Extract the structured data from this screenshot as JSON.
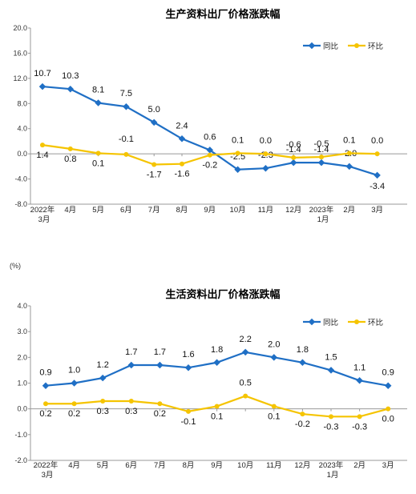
{
  "chart_data": [
    {
      "type": "line",
      "title": "生产资料出厂价格涨跌幅",
      "unit": "",
      "categories": [
        "2022年|3月",
        "4月",
        "5月",
        "6月",
        "7月",
        "8月",
        "9月",
        "10月",
        "11月",
        "12月",
        "2023年|1月",
        "2月",
        "3月"
      ],
      "series": [
        {
          "name": "同比",
          "color": "#1f6fc5",
          "values": [
            10.7,
            10.3,
            8.1,
            7.5,
            5.0,
            2.4,
            0.6,
            -2.5,
            -2.3,
            -1.4,
            -1.4,
            -2.0,
            -3.4
          ],
          "labels": [
            "10.7",
            "10.3",
            "8.1",
            "7.5",
            "5.0",
            "2.4",
            "0.6",
            "-2.5",
            "-2.3",
            "-1.4",
            "-1.4",
            "-2.0",
            "-3.4"
          ]
        },
        {
          "name": "环比",
          "color": "#f5c400",
          "values": [
            1.4,
            0.8,
            0.1,
            -0.1,
            -1.7,
            -1.6,
            -0.2,
            0.1,
            0.0,
            -0.6,
            -0.5,
            0.1,
            0.0
          ],
          "labels": [
            "1.4",
            "0.8",
            "0.1",
            "-0.1",
            "-1.7",
            "-1.6",
            "-0.2",
            "0.1",
            "0.0",
            "-0.6",
            "-0.5",
            "0.1",
            "0.0"
          ]
        }
      ],
      "yticks": [
        "20.0",
        "16.0",
        "12.0",
        "8.0",
        "4.0",
        "0.0",
        "-4.0",
        "-8.0"
      ],
      "ylim": [
        -8,
        20
      ],
      "legend": "top-right",
      "grid": false
    },
    {
      "type": "line",
      "title": "生活资料出厂价格涨跌幅",
      "unit": "(%)",
      "categories": [
        "2022年|3月",
        "4月",
        "5月",
        "6月",
        "7月",
        "8月",
        "9月",
        "10月",
        "11月",
        "12月",
        "2023年|1月",
        "2月",
        "3月"
      ],
      "series": [
        {
          "name": "同比",
          "color": "#1f6fc5",
          "values": [
            0.9,
            1.0,
            1.2,
            1.7,
            1.7,
            1.6,
            1.8,
            2.2,
            2.0,
            1.8,
            1.5,
            1.1,
            0.9
          ],
          "labels": [
            "0.9",
            "1.0",
            "1.2",
            "1.7",
            "1.7",
            "1.6",
            "1.8",
            "2.2",
            "2.0",
            "1.8",
            "1.5",
            "1.1",
            "0.9"
          ]
        },
        {
          "name": "环比",
          "color": "#f5c400",
          "values": [
            0.2,
            0.2,
            0.3,
            0.3,
            0.2,
            -0.1,
            0.1,
            0.5,
            0.1,
            -0.2,
            -0.3,
            -0.3,
            0.0
          ],
          "labels": [
            "0.2",
            "0.2",
            "0.3",
            "0.3",
            "0.2",
            "-0.1",
            "0.1",
            "0.5",
            "0.1",
            "-0.2",
            "-0.3",
            "-0.3",
            "0.0"
          ]
        }
      ],
      "yticks": [
        "4.0",
        "3.0",
        "2.0",
        "1.0",
        "0.0",
        "-1.0",
        "-2.0"
      ],
      "ylim": [
        -2,
        4
      ],
      "legend": "top-right",
      "grid": false
    }
  ]
}
